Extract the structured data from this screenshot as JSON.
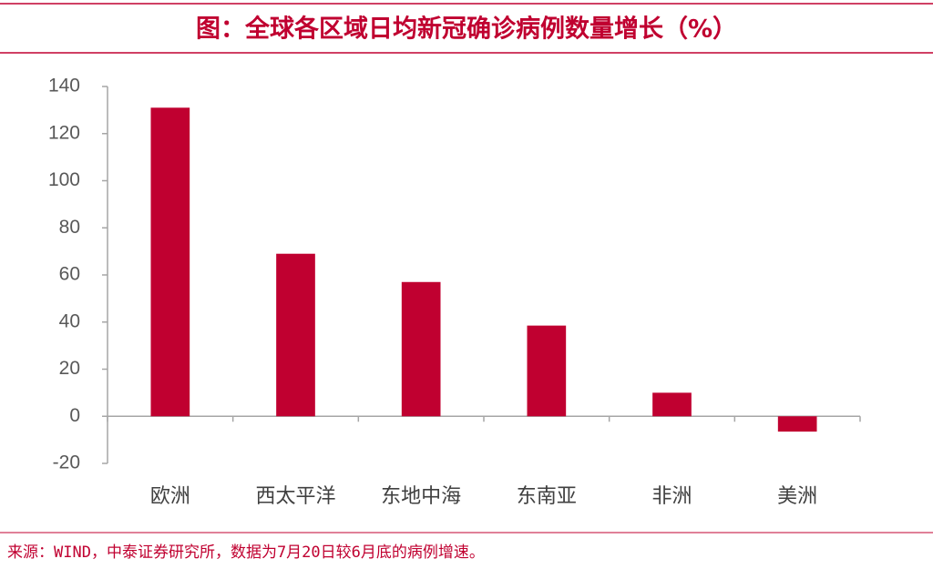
{
  "chart_data": {
    "type": "bar",
    "title": "图：全球各区域日均新冠确诊病例数量增长（%）",
    "categories": [
      "欧洲",
      "西太平洋",
      "东地中海",
      "东南亚",
      "非洲",
      "美洲"
    ],
    "values": [
      131,
      69,
      57,
      38.5,
      10,
      -6.5
    ],
    "color": "#c00030",
    "ylim": [
      -20,
      140
    ],
    "yticks": [
      -20,
      0,
      20,
      40,
      60,
      80,
      100,
      120,
      140
    ],
    "grid": false,
    "source": "来源：WIND，中泰证券研究所，数据为7月20日较6月底的病例增速。"
  }
}
